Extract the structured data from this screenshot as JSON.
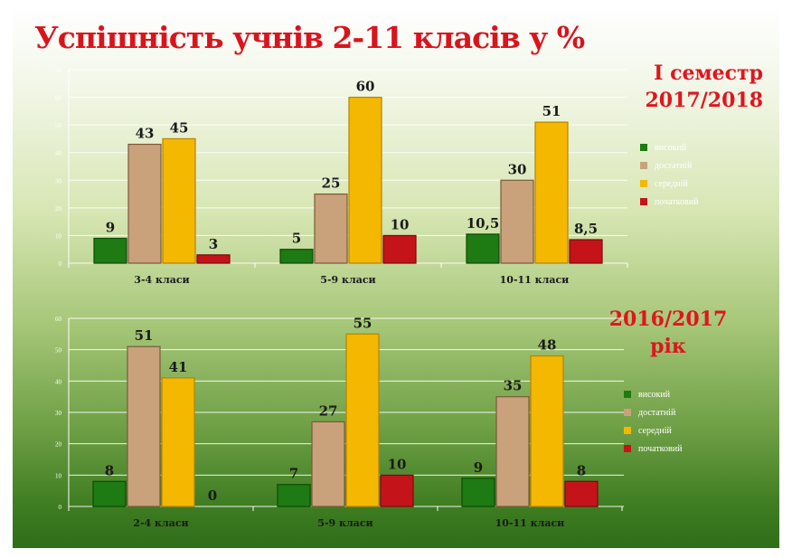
{
  "title": "Успішність учнів 2-11 класів у %",
  "colors": {
    "high": "#1e7a12",
    "sufficient": "#c9a27b",
    "medium": "#f5b800",
    "initial": "#c4141a"
  },
  "chart_data": [
    {
      "type": "bar",
      "period_label": [
        "І семестр",
        "2017/2018"
      ],
      "categories": [
        "3-4 класи",
        "5-9 класи",
        "10-11 класи"
      ],
      "series": [
        {
          "name": "високий",
          "values": [
            9,
            5,
            10.5
          ]
        },
        {
          "name": "достатній",
          "values": [
            43,
            25,
            30
          ]
        },
        {
          "name": "середній",
          "values": [
            45,
            60,
            51
          ]
        },
        {
          "name": "початковий",
          "values": [
            3,
            10,
            8.5
          ]
        }
      ],
      "data_labels": [
        [
          "9",
          "5",
          "10,5"
        ],
        [
          "43",
          "25",
          "30"
        ],
        [
          "45",
          "60",
          "51"
        ],
        [
          "3",
          "10",
          "8,5"
        ]
      ],
      "ylim": [
        0,
        70
      ],
      "yticks": [
        0,
        10,
        20,
        30,
        40,
        50,
        60,
        70
      ],
      "grid": true,
      "legend_position": "right"
    },
    {
      "type": "bar",
      "period_label": [
        "2016/2017",
        "рік"
      ],
      "categories": [
        "2-4 класи",
        "5-9 класи",
        "10-11 класи"
      ],
      "series": [
        {
          "name": "високий",
          "values": [
            8,
            7,
            9
          ]
        },
        {
          "name": "достатній",
          "values": [
            51,
            27,
            35
          ]
        },
        {
          "name": "середній",
          "values": [
            41,
            55,
            48
          ]
        },
        {
          "name": "початковий",
          "values": [
            0,
            10,
            8
          ]
        }
      ],
      "data_labels": [
        [
          "8",
          "7",
          "9"
        ],
        [
          "51",
          "27",
          "35"
        ],
        [
          "41",
          "55",
          "48"
        ],
        [
          "0",
          "10",
          "8"
        ]
      ],
      "ylim": [
        0,
        60
      ],
      "yticks": [
        0,
        10,
        20,
        30,
        40,
        50,
        60
      ],
      "grid": true,
      "legend_position": "right"
    }
  ]
}
